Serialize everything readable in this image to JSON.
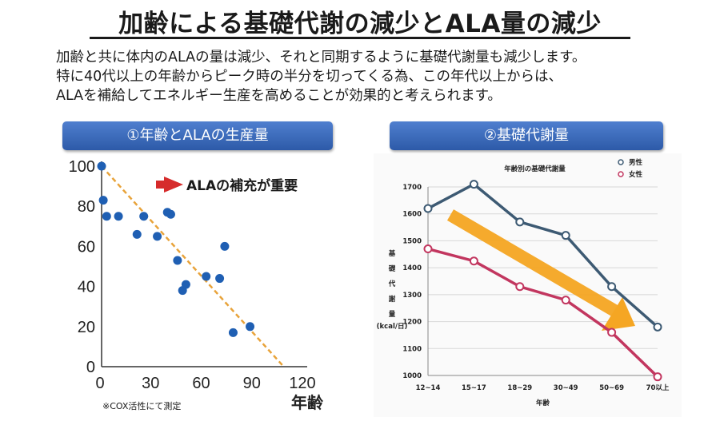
{
  "title": "加齢による基礎代謝の減少とALA量の減少",
  "intro": [
    "加齢と共に体内のALAの量は減少、それと同期するように基礎代謝量も減少します。",
    "特に40代以上の年齢からピーク時の半分を切ってくる為、この年代以上からは、",
    "ALAを補給してエネルギー生産を高めることが効果的と考えられます。"
  ],
  "panels": [
    {
      "header": "①年齢とALAの生産量"
    },
    {
      "header": "②基礎代謝量"
    }
  ],
  "colors": {
    "header_blue": "#3a6bbf",
    "dot_blue": "#1f5fb3",
    "trend_orange": "#e8a33a",
    "male": "#3d5a73",
    "female": "#c2365f",
    "arrow": "#f5a623",
    "annotation_red": "#d62b2b"
  },
  "chart_data": [
    {
      "type": "scatter",
      "title": "",
      "xlabel": "年齢",
      "ylabel": "",
      "xlim": [
        0,
        120
      ],
      "ylim": [
        0,
        100
      ],
      "x_ticks": [
        "0",
        "30",
        "60",
        "90",
        "120"
      ],
      "y_ticks": [
        "0",
        "20",
        "40",
        "60",
        "80",
        "100"
      ],
      "points": [
        {
          "x": 0,
          "y": 100
        },
        {
          "x": 1,
          "y": 83
        },
        {
          "x": 3,
          "y": 75
        },
        {
          "x": 10,
          "y": 75
        },
        {
          "x": 21,
          "y": 66
        },
        {
          "x": 25,
          "y": 75
        },
        {
          "x": 33,
          "y": 65
        },
        {
          "x": 39,
          "y": 77
        },
        {
          "x": 41,
          "y": 76
        },
        {
          "x": 45,
          "y": 53
        },
        {
          "x": 48,
          "y": 38
        },
        {
          "x": 50,
          "y": 41
        },
        {
          "x": 62,
          "y": 45
        },
        {
          "x": 70,
          "y": 44
        },
        {
          "x": 73,
          "y": 60
        },
        {
          "x": 78,
          "y": 17
        },
        {
          "x": 88,
          "y": 20
        }
      ],
      "trend_line": {
        "from": [
          0,
          100
        ],
        "to": [
          108,
          0
        ]
      },
      "annotation": "ALAの補充が重要",
      "note": "※COX活性にて測定"
    },
    {
      "type": "line",
      "title": "年齢別の基礎代謝量",
      "xlabel": "年齢",
      "ylabel": [
        "基",
        "礎",
        "代",
        "謝",
        "量",
        "(kcal/日)"
      ],
      "ylim": [
        1000,
        1700
      ],
      "y_ticks": [
        "1700",
        "1600",
        "1500",
        "1400",
        "1300",
        "1200",
        "1100",
        "1000"
      ],
      "categories": [
        "12~14",
        "15~17",
        "18~29",
        "30~49",
        "50~69",
        "70以上"
      ],
      "series": [
        {
          "name": "男性",
          "values": [
            1620,
            1710,
            1570,
            1520,
            1330,
            1180
          ]
        },
        {
          "name": "女性",
          "values": [
            1470,
            1425,
            1330,
            1280,
            1160,
            995
          ]
        }
      ],
      "legend": "top-right"
    }
  ]
}
